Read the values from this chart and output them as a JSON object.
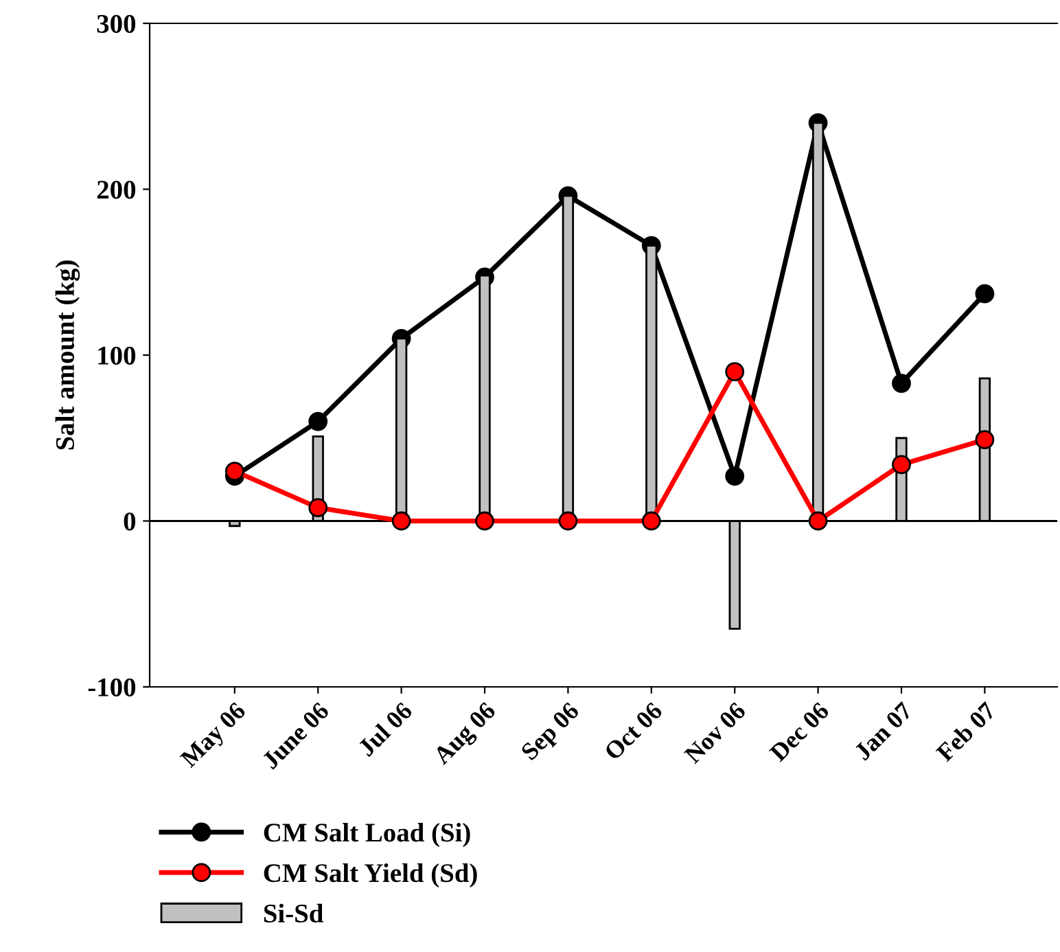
{
  "chart_data": {
    "type": "line",
    "ylabel": "Salt amount (kg)",
    "categories": [
      "May 06",
      "June 06",
      "Jul 06",
      "Aug 06",
      "Sep 06",
      "Oct 06",
      "Nov 06",
      "Dec 06",
      "Jan 07",
      "Feb 07"
    ],
    "series": [
      {
        "name": "Si-Sd",
        "type": "bar",
        "color": "#c0c0c0",
        "values": [
          -3,
          51,
          110,
          148,
          196,
          166,
          -65,
          240,
          50,
          86
        ]
      },
      {
        "name": "CM Salt Load (Si)",
        "color": "#000000",
        "values": [
          27,
          60,
          110,
          147,
          196,
          166,
          27,
          240,
          83,
          137
        ]
      },
      {
        "name": "CM Salt Yield (Sd)",
        "color": "#ff0000",
        "values": [
          30,
          8,
          0,
          0,
          0,
          0,
          90,
          0,
          34,
          49
        ]
      }
    ],
    "ylim": [
      -100,
      300
    ],
    "yticks": [
      -100,
      0,
      100,
      200,
      300
    ],
    "ref_lines": [
      {
        "axis": "y",
        "value": 0
      }
    ],
    "marker": "circle",
    "legend": "bottom left",
    "grid": false
  }
}
